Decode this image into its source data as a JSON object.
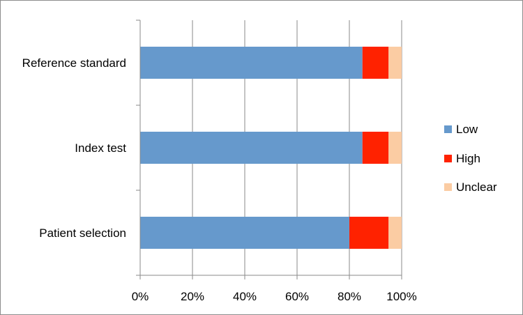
{
  "chart_data": {
    "type": "bar",
    "orientation": "horizontal",
    "stacked": "percent",
    "categories": [
      "Patient selection",
      "Index test",
      "Reference standard"
    ],
    "series": [
      {
        "name": "Low",
        "values": [
          80,
          85,
          85
        ],
        "color": "#6699cc"
      },
      {
        "name": "High",
        "values": [
          15,
          10,
          10
        ],
        "color": "#ff2200"
      },
      {
        "name": "Unclear",
        "values": [
          5,
          5,
          5
        ],
        "color": "#fbcca3"
      }
    ],
    "x_ticks": [
      "0%",
      "20%",
      "40%",
      "60%",
      "80%",
      "100%"
    ],
    "xlim": [
      0,
      100
    ],
    "grid": "vertical",
    "legend_position": "right",
    "title": "",
    "xlabel": "",
    "ylabel": ""
  }
}
